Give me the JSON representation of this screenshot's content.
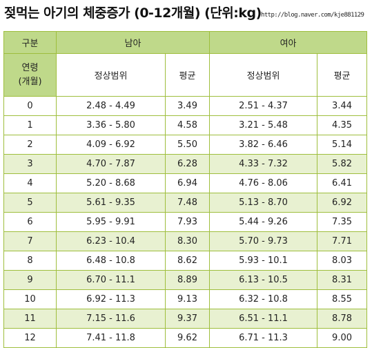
{
  "header": {
    "title": "젖먹는 아기의 체중증가 (0-12개월) (단위:kg)",
    "url": "http://blog.naver.com/kje881129"
  },
  "table": {
    "group_label": "구분",
    "male_label": "남아",
    "female_label": "여아",
    "age_label_line1": "연령",
    "age_label_line2": "(개월)",
    "range_label": "정상범위",
    "avg_label": "평균",
    "rows": [
      {
        "age": "0",
        "male_range": "2.48 - 4.49",
        "male_avg": "3.49",
        "female_range": "2.51 - 4.37",
        "female_avg": "3.44"
      },
      {
        "age": "1",
        "male_range": "3.36 - 5.80",
        "male_avg": "4.58",
        "female_range": "3.21 - 5.48",
        "female_avg": "4.35"
      },
      {
        "age": "2",
        "male_range": "4.09 - 6.92",
        "male_avg": "5.50",
        "female_range": "3.82 - 6.46",
        "female_avg": "5.14"
      },
      {
        "age": "3",
        "male_range": "4.70 - 7.87",
        "male_avg": "6.28",
        "female_range": "4.33 - 7.32",
        "female_avg": "5.82"
      },
      {
        "age": "4",
        "male_range": "5.20 - 8.68",
        "male_avg": "6.94",
        "female_range": "4.76 - 8.06",
        "female_avg": "6.41"
      },
      {
        "age": "5",
        "male_range": "5.61 - 9.35",
        "male_avg": "7.48",
        "female_range": "5.13 - 8.70",
        "female_avg": "6.92"
      },
      {
        "age": "6",
        "male_range": "5.95 - 9.91",
        "male_avg": "7.93",
        "female_range": "5.44 - 9.26",
        "female_avg": "7.35"
      },
      {
        "age": "7",
        "male_range": "6.23 - 10.4",
        "male_avg": "8.30",
        "female_range": "5.70 - 9.73",
        "female_avg": "7.71"
      },
      {
        "age": "8",
        "male_range": "6.48 - 10.8",
        "male_avg": "8.62",
        "female_range": "5.93 - 10.1",
        "female_avg": "8.03"
      },
      {
        "age": "9",
        "male_range": "6.70 - 11.1",
        "male_avg": "8.89",
        "female_range": "6.13 - 10.5",
        "female_avg": "8.31"
      },
      {
        "age": "10",
        "male_range": "6.92 - 11.3",
        "male_avg": "9.13",
        "female_range": "6.32 - 10.8",
        "female_avg": "8.55"
      },
      {
        "age": "11",
        "male_range": "7.15 - 11.6",
        "male_avg": "9.37",
        "female_range": "6.51 - 11.1",
        "female_avg": "8.78"
      },
      {
        "age": "12",
        "male_range": "7.41 - 11.8",
        "male_avg": "9.62",
        "female_range": "6.71 - 11.3",
        "female_avg": "9.00"
      }
    ]
  },
  "colors": {
    "header_green": "#bfd98a",
    "row_alt": "#e8f1d1",
    "border": "#9ebe3c"
  }
}
